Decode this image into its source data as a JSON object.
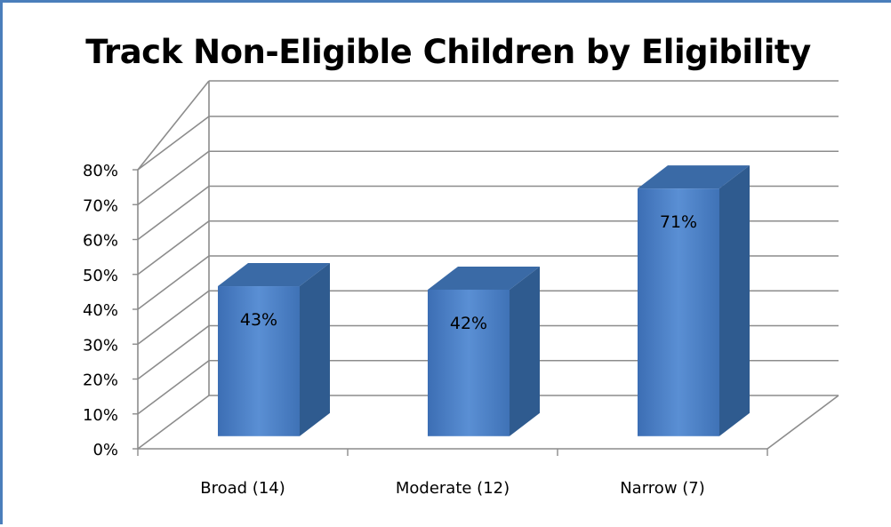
{
  "chart_data": {
    "type": "bar",
    "title": "Track Non-Eligible Children by Eligibility",
    "xlabel": "",
    "ylabel": "",
    "categories": [
      "Broad (14)",
      "Moderate (12)",
      "Narrow (7)"
    ],
    "values": [
      43,
      42,
      71
    ],
    "data_labels": [
      "43%",
      "42%",
      "71%"
    ],
    "yticks": [
      "0%",
      "10%",
      "20%",
      "30%",
      "40%",
      "50%",
      "60%",
      "70%",
      "80%"
    ],
    "ylim": [
      0,
      80
    ],
    "grid": true,
    "style": "3d-column",
    "bar_color": "#4f81bd"
  }
}
